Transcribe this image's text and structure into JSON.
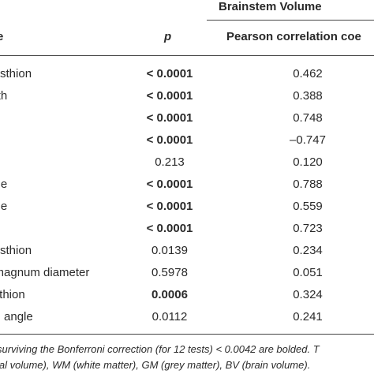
{
  "table": {
    "group_header": "Brainstem Volume",
    "columns": {
      "variable": "e",
      "p": "p",
      "r": "Pearson correlation coe"
    },
    "rows": [
      {
        "variable": "opisthion",
        "p": "< 0.0001",
        "p_bold": true,
        "r": "0.462"
      },
      {
        "variable": "ngth",
        "p": "< 0.0001",
        "p_bold": true,
        "r": "0.388"
      },
      {
        "variable": "",
        "p": "< 0.0001",
        "p_bold": true,
        "r": "0.748"
      },
      {
        "variable": "",
        "p": "< 0.0001",
        "p_bold": true,
        "r": "–0.747"
      },
      {
        "variable": "",
        "p": "0.213",
        "p_bold": false,
        "r": "0.120"
      },
      {
        "variable": "ume",
        "p": "< 0.0001",
        "p_bold": true,
        "r": "0.788"
      },
      {
        "variable": "ume",
        "p": "< 0.0001",
        "p_bold": true,
        "r": "0.559"
      },
      {
        "variable": "",
        "p": "< 0.0001",
        "p_bold": true,
        "r": "0.723"
      },
      {
        "variable": "opisthion",
        "p": "0.0139",
        "p_bold": false,
        "r": "0.234"
      },
      {
        "variable": "n magnum diameter",
        "p": "0.5978",
        "p_bold": false,
        "r": "0.051"
      },
      {
        "variable": "pisthion",
        "p": "0.0006",
        "p_bold": true,
        "r": "0.324"
      },
      {
        "variable": "em angle",
        "p": "0.0112",
        "p_bold": false,
        "r": "0.241"
      }
    ],
    "footnotes": [
      "surviving the Bonferroni correction (for 12 tests) < 0.0042 are bolded. T",
      "ial volume), WM (white matter), GM (grey matter), BV (brain volume)."
    ]
  }
}
